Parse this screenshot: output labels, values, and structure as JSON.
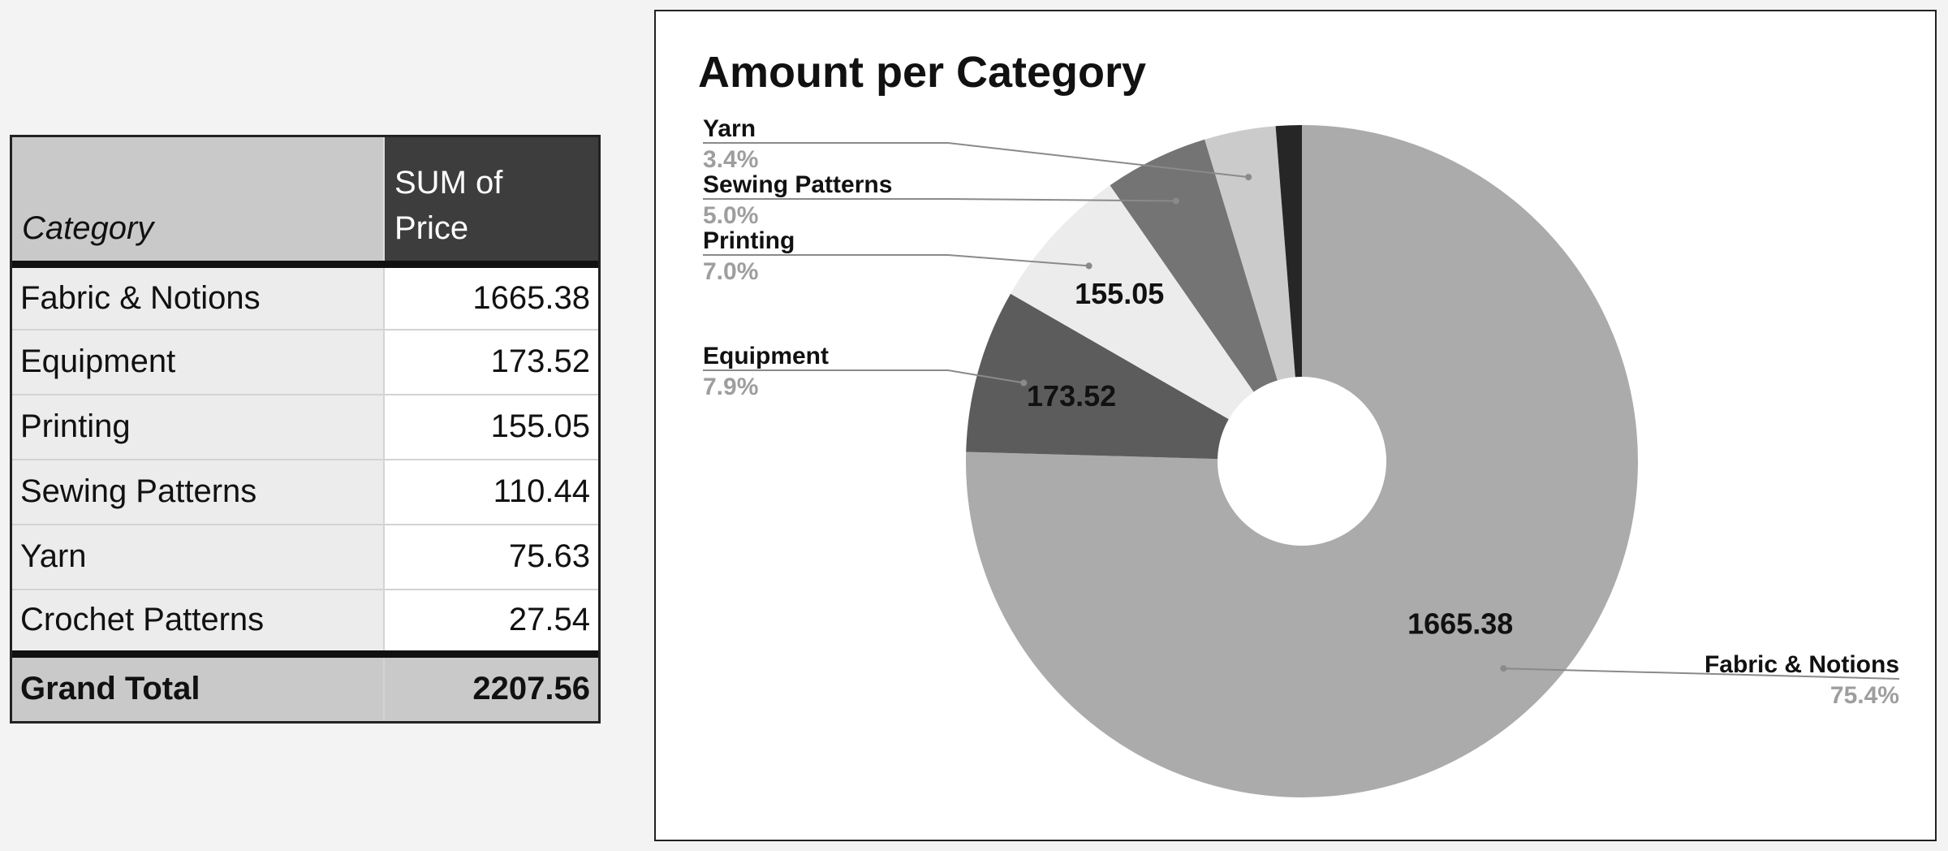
{
  "table": {
    "header_category": "Category",
    "header_sum_line1": "SUM of",
    "header_sum_line2": "Price",
    "rows": [
      {
        "category": "Fabric & Notions",
        "value": "1665.38"
      },
      {
        "category": "Equipment",
        "value": "173.52"
      },
      {
        "category": "Printing",
        "value": "155.05"
      },
      {
        "category": "Sewing Patterns",
        "value": "110.44"
      },
      {
        "category": "Yarn",
        "value": "75.63"
      },
      {
        "category": "Crochet Patterns",
        "value": "27.54"
      }
    ],
    "total_label": "Grand Total",
    "total_value": "2207.56"
  },
  "chart_data": {
    "type": "pie",
    "donut": true,
    "title": "Amount per Category",
    "categories": [
      "Fabric & Notions",
      "Equipment",
      "Printing",
      "Sewing Patterns",
      "Yarn",
      "Crochet Patterns"
    ],
    "values": [
      1665.38,
      173.52,
      155.05,
      110.44,
      75.63,
      27.54
    ],
    "percent_labels": [
      "75.4%",
      "7.9%",
      "7.0%",
      "5.0%",
      "3.4%",
      ""
    ],
    "value_labels": [
      "1665.38",
      "173.52",
      "155.05",
      "",
      "",
      ""
    ],
    "colors": [
      "#ababab",
      "#5c5c5c",
      "#ececec",
      "#747474",
      "#cbcbcb",
      "#262626"
    ],
    "legend": "none"
  }
}
